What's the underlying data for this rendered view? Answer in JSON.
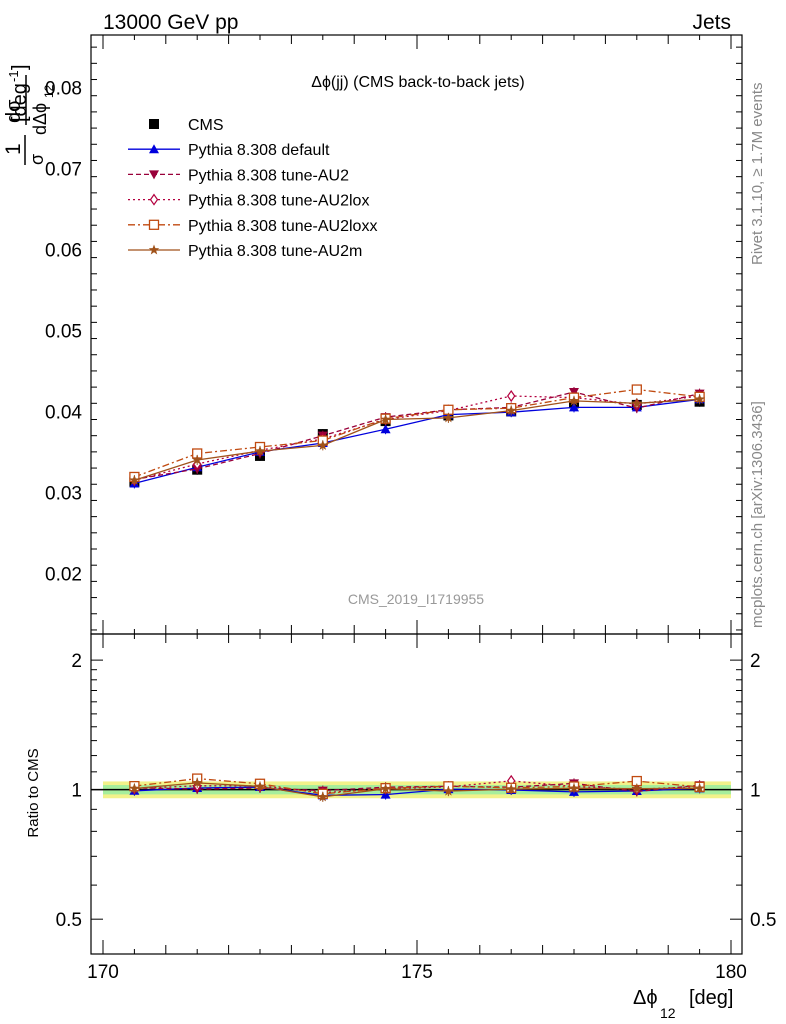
{
  "header": {
    "energy_label": "13000 GeV pp",
    "process_label": "Jets"
  },
  "side_labels": {
    "rivet": "Rivet 3.1.10, ≥ 1.7M events",
    "mcplots": "mcplots.cern.ch [arXiv:1306.3436]"
  },
  "colors": {
    "cms": "#000000",
    "default": "#0000dd",
    "au2": "#99003a",
    "au2lox": "#b3003f",
    "au2loxx": "#c04a10",
    "au2m": "#a0521a",
    "band_yellow": "#f2f28a",
    "band_green": "#a6ee9c"
  },
  "chart_data": [
    {
      "type": "line",
      "title": "Δϕ(jj) (CMS back-to-back jets)",
      "analysis_label": "CMS_2019_I1719955",
      "xlabel": "Δϕ₁₂ [deg]",
      "ylabel": "1/σ dσ/dΔϕ₁₂ [deg⁻¹]",
      "xlim": [
        170,
        180
      ],
      "ylim": [
        0.0125,
        0.0865
      ],
      "yticks": [
        "0.02",
        "0.03",
        "0.04",
        "0.05",
        "0.06",
        "0.07",
        "0.08"
      ],
      "legend_position": "top-left",
      "x": [
        170.5,
        171.5,
        172.5,
        173.5,
        174.5,
        175.5,
        176.5,
        177.5,
        178.5,
        179.5
      ],
      "series": [
        {
          "name": "CMS",
          "marker": "square",
          "line": "none",
          "values": [
            0.0313,
            0.0328,
            0.0345,
            0.0372,
            0.0388,
            0.0395,
            0.04,
            0.041,
            0.0408,
            0.0412
          ]
        },
        {
          "name": "Pythia 8.308 default",
          "marker": "triangle-up",
          "line": "solid",
          "values": [
            0.0311,
            0.0331,
            0.035,
            0.0361,
            0.0378,
            0.0396,
            0.0399,
            0.0405,
            0.0405,
            0.0415
          ]
        },
        {
          "name": "Pythia 8.308 tune-AU2",
          "marker": "triangle-down",
          "line": "dashed",
          "values": [
            0.0316,
            0.0329,
            0.0348,
            0.037,
            0.0393,
            0.0402,
            0.0405,
            0.0424,
            0.0404,
            0.0422
          ]
        },
        {
          "name": "Pythia 8.308 tune-AU2lox",
          "marker": "diamond-open",
          "line": "dotted",
          "values": [
            0.0315,
            0.0335,
            0.0352,
            0.0366,
            0.039,
            0.0401,
            0.0419,
            0.0417,
            0.0409,
            0.0419
          ]
        },
        {
          "name": "Pythia 8.308 tune-AU2loxx",
          "marker": "square-open",
          "line": "dashdot",
          "values": [
            0.0319,
            0.0348,
            0.0356,
            0.0364,
            0.0391,
            0.0402,
            0.0404,
            0.0417,
            0.0427,
            0.0418
          ]
        },
        {
          "name": "Pythia 8.308 tune-AU2m",
          "marker": "star",
          "line": "solid",
          "values": [
            0.0315,
            0.034,
            0.0351,
            0.0358,
            0.039,
            0.0392,
            0.0401,
            0.0413,
            0.041,
            0.0415
          ]
        }
      ]
    },
    {
      "type": "line",
      "ylabel": "Ratio to CMS",
      "xlim": [
        170,
        180
      ],
      "ylim": [
        0.415,
        2.3
      ],
      "yscale": "log",
      "yticks": [
        "0.5",
        "1",
        "2"
      ],
      "xticks": [
        "170",
        "175",
        "180"
      ],
      "x": [
        170.5,
        171.5,
        172.5,
        173.5,
        174.5,
        175.5,
        176.5,
        177.5,
        178.5,
        179.5
      ],
      "band_green_halfwidth": 0.025,
      "band_yellow_halfwidth": 0.045,
      "series": [
        {
          "name": "Pythia 8.308 default",
          "marker": "triangle-up",
          "line": "solid",
          "values": [
            0.994,
            1.009,
            1.014,
            0.97,
            0.974,
            1.003,
            0.998,
            0.988,
            0.993,
            1.007
          ]
        },
        {
          "name": "Pythia 8.308 tune-AU2",
          "marker": "triangle-down",
          "line": "dashed",
          "values": [
            1.01,
            1.003,
            1.009,
            0.995,
            1.013,
            1.018,
            1.013,
            1.034,
            0.99,
            1.024
          ]
        },
        {
          "name": "Pythia 8.308 tune-AU2lox",
          "marker": "diamond-open",
          "line": "dotted",
          "values": [
            1.006,
            1.021,
            1.02,
            0.984,
            1.005,
            1.015,
            1.048,
            1.017,
            1.002,
            1.017
          ]
        },
        {
          "name": "Pythia 8.308 tune-AU2loxx",
          "marker": "square-open",
          "line": "dashdot",
          "values": [
            1.019,
            1.061,
            1.032,
            0.978,
            1.008,
            1.018,
            1.01,
            1.017,
            1.047,
            1.015
          ]
        },
        {
          "name": "Pythia 8.308 tune-AU2m",
          "marker": "star",
          "line": "solid",
          "values": [
            1.006,
            1.037,
            1.017,
            0.962,
            1.005,
            0.992,
            1.003,
            1.007,
            1.005,
            1.007
          ]
        }
      ]
    }
  ]
}
